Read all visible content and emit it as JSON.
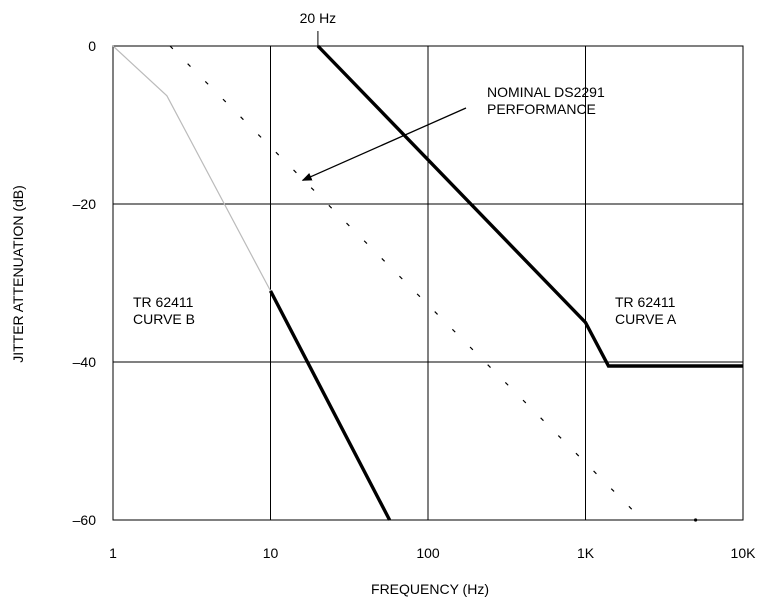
{
  "chart_data": {
    "type": "line",
    "title": "",
    "xlabel": "FREQUENCY (Hz)",
    "ylabel": "JITTER ATTENUATION (dB)",
    "x_scale": "log",
    "xlim": [
      1,
      10000
    ],
    "ylim": [
      -60,
      0
    ],
    "x_ticks": [
      {
        "value": 1,
        "label": "1"
      },
      {
        "value": 10,
        "label": "10"
      },
      {
        "value": 100,
        "label": "100"
      },
      {
        "value": 1000,
        "label": "1K"
      },
      {
        "value": 10000,
        "label": "10K"
      }
    ],
    "y_ticks": [
      {
        "value": 0,
        "label": "0"
      },
      {
        "value": -20,
        "label": "–20"
      },
      {
        "value": -40,
        "label": "–40"
      },
      {
        "value": -60,
        "label": "–60"
      }
    ],
    "grid": true,
    "series": [
      {
        "name": "TR 62411 CURVE A",
        "style": "thick",
        "color": "#000000",
        "points": [
          [
            20,
            0
          ],
          [
            1000,
            -35
          ],
          [
            1400,
            -40.5
          ],
          [
            10000,
            -40.5
          ]
        ]
      },
      {
        "name": "TR 62411 CURVE B",
        "style": "thick",
        "color": "#000000",
        "points": [
          [
            10,
            -31
          ],
          [
            57,
            -60
          ]
        ]
      },
      {
        "style": "thin",
        "color": "#bbbbbb",
        "points": [
          [
            1,
            0
          ],
          [
            2.2,
            -6.3
          ],
          [
            10,
            -31
          ]
        ]
      },
      {
        "name": "NOMINAL DS2291 PERFORMANCE",
        "style": "dotted",
        "color": "#000000",
        "points": [
          [
            2.3,
            0
          ],
          [
            2300,
            -60
          ]
        ]
      }
    ],
    "annotations": [
      {
        "id": "ds2291",
        "lines": [
          "NOMINAL DS2291",
          "PERFORMANCE"
        ],
        "x": 60,
        "y": -7
      },
      {
        "id": "curve-a",
        "lines": [
          "TR 62411",
          "CURVE A"
        ],
        "x": 2000,
        "y": -33.5
      },
      {
        "id": "curve-b",
        "lines": [
          "TR 62411",
          "CURVE B"
        ],
        "x": 2.5,
        "y": -33.5
      },
      {
        "id": "corner",
        "lines": [
          "20 Hz"
        ],
        "x": 20,
        "y": 0
      }
    ],
    "arrow": {
      "from": [
        80,
        -10.8
      ],
      "to": [
        16,
        -17
      ]
    }
  }
}
